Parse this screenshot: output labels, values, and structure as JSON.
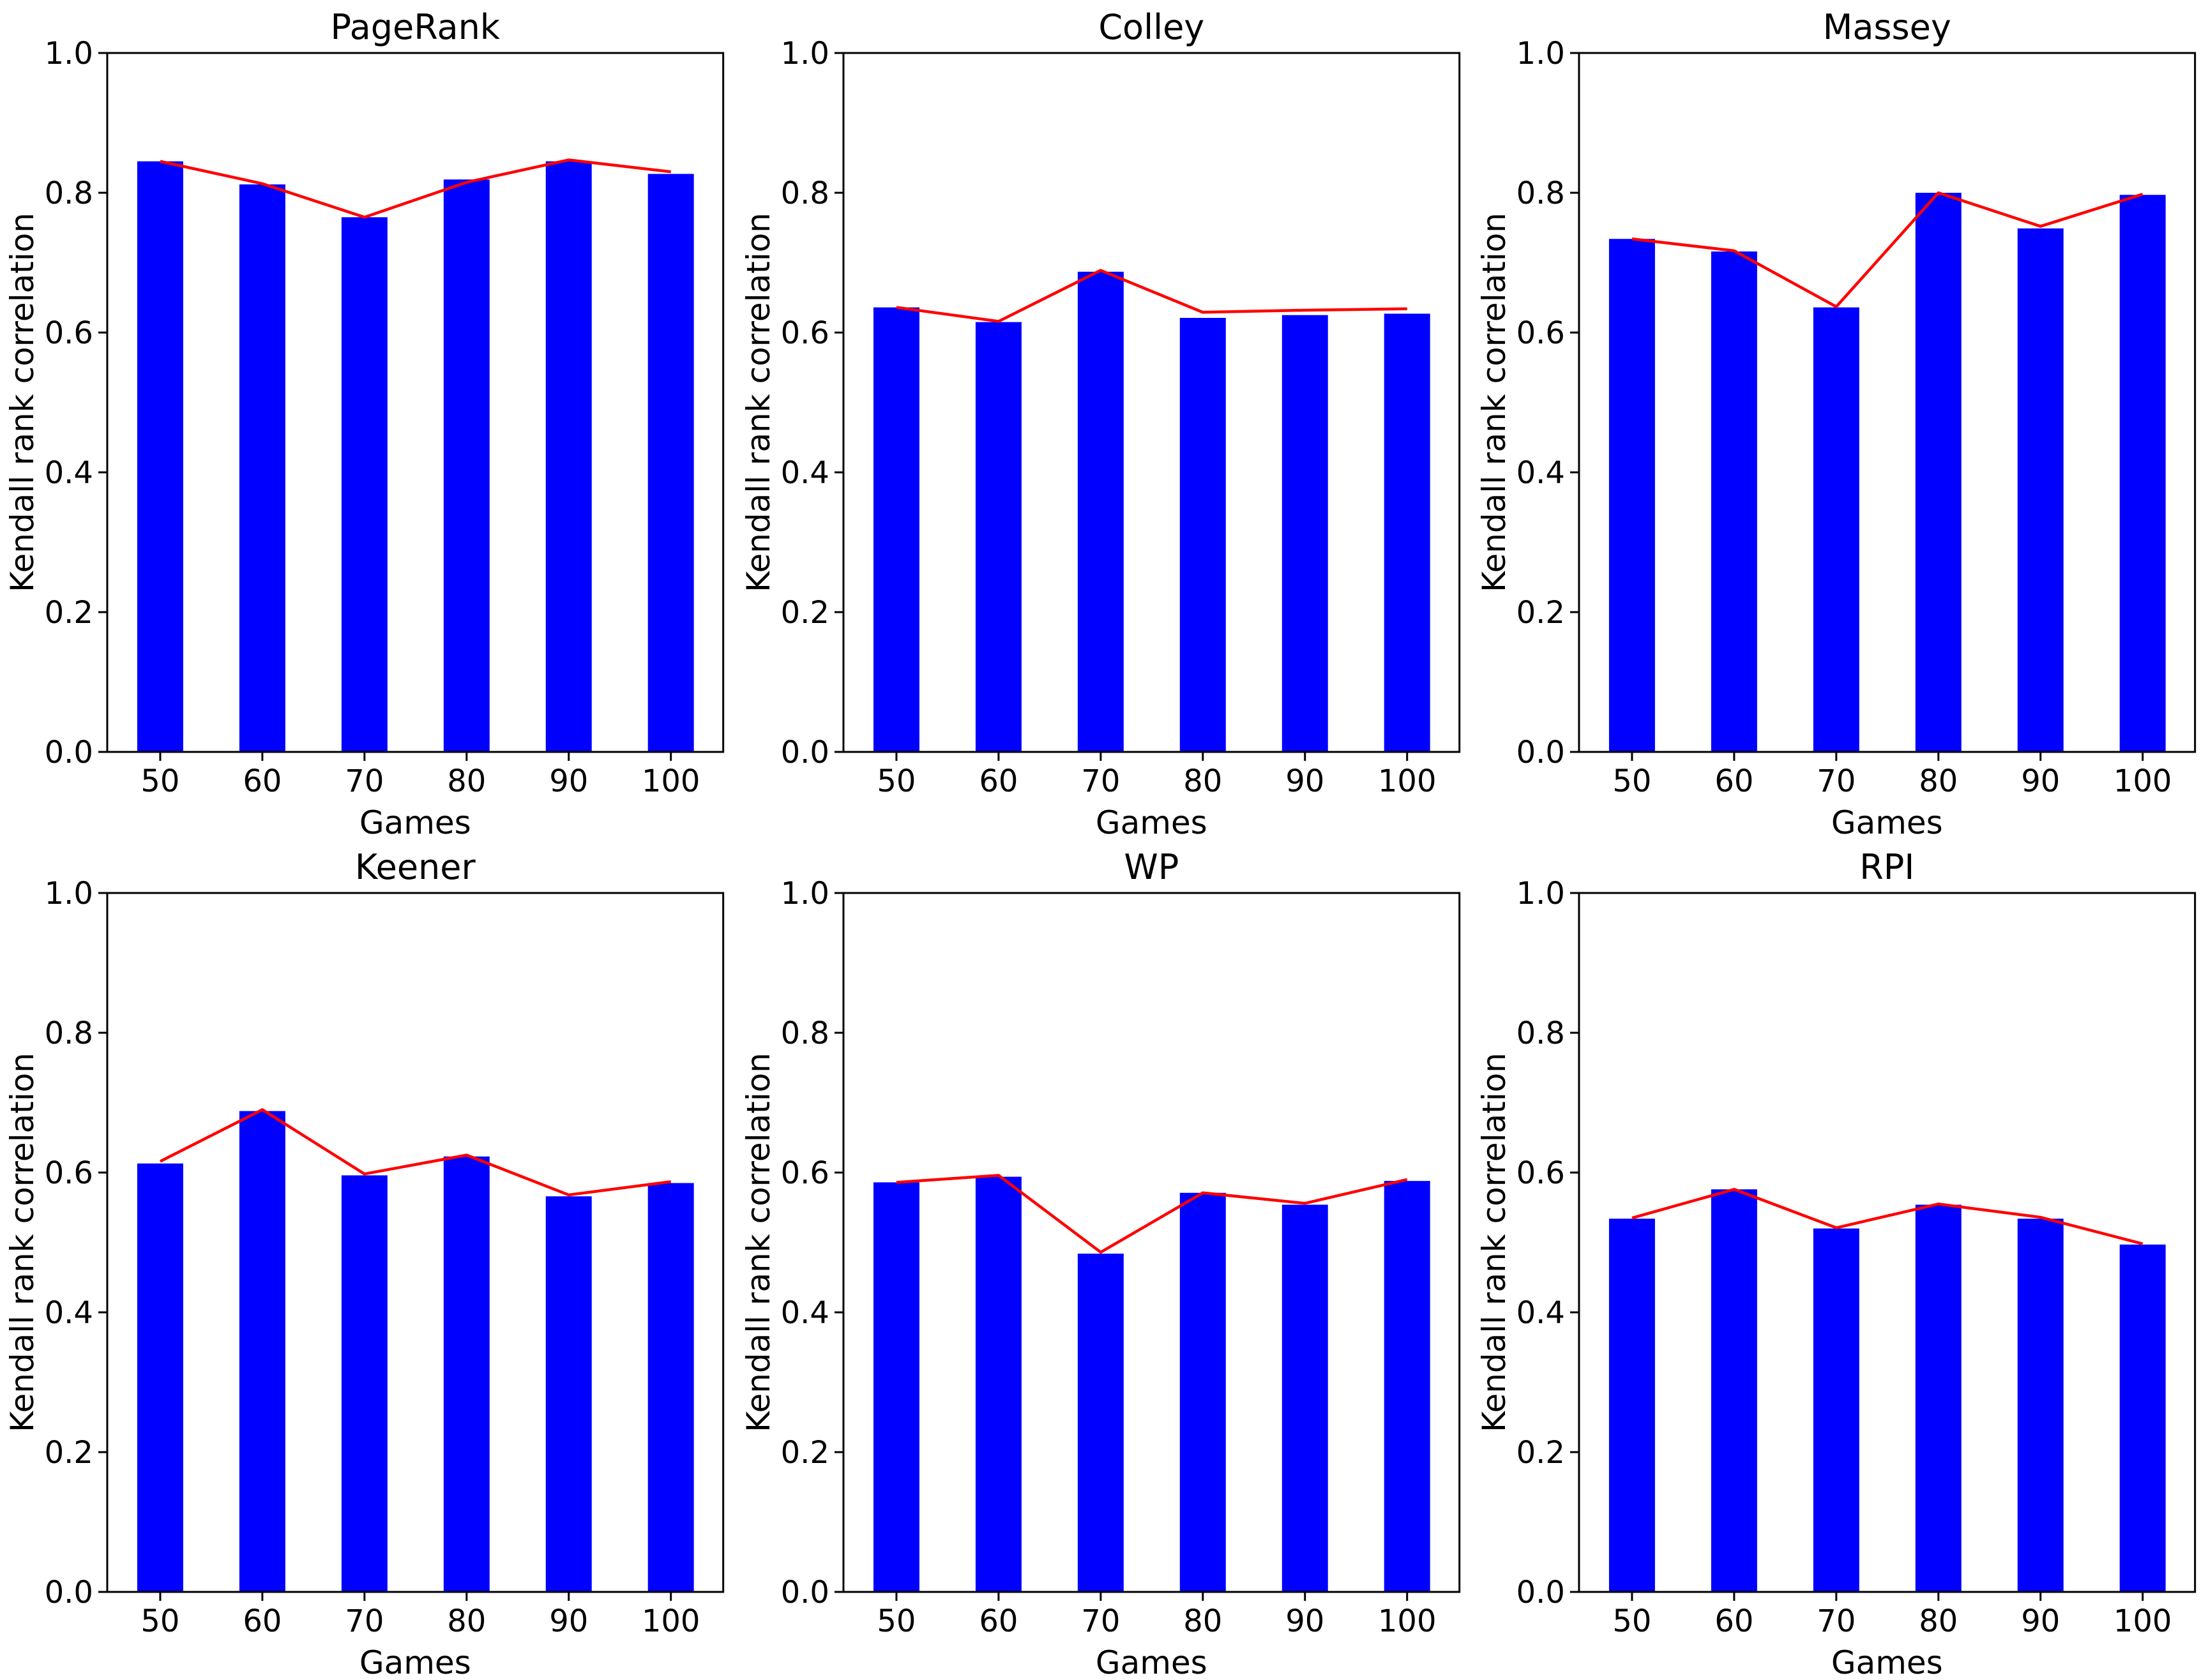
{
  "figure": {
    "background": "#ffffff"
  },
  "colors": {
    "bar": "#0000ff",
    "line": "#ff0000",
    "axis": "#000000",
    "text": "#000000"
  },
  "chart_data": [
    {
      "type": "bar",
      "title": "PageRank",
      "xlabel": "Games",
      "ylabel": "Kendall rank correlation",
      "categories": [
        "50",
        "60",
        "70",
        "80",
        "90",
        "100"
      ],
      "ylim": [
        0.0,
        1.0
      ],
      "ytick_values": [
        0.0,
        0.2,
        0.4,
        0.6,
        0.8,
        1.0
      ],
      "ytick_labels": [
        "0.0",
        "0.2",
        "0.4",
        "0.6",
        "0.8",
        "1.0"
      ],
      "grid": false,
      "legend": "none",
      "series": [
        {
          "name": "bars",
          "type": "bar",
          "values": [
            0.845,
            0.812,
            0.765,
            0.819,
            0.845,
            0.827
          ]
        },
        {
          "name": "line",
          "type": "line",
          "values": [
            0.845,
            0.813,
            0.765,
            0.815,
            0.847,
            0.83
          ]
        }
      ]
    },
    {
      "type": "bar",
      "title": "Colley",
      "xlabel": "Games",
      "ylabel": "Kendall rank correlation",
      "categories": [
        "50",
        "60",
        "70",
        "80",
        "90",
        "100"
      ],
      "ylim": [
        0.0,
        1.0
      ],
      "ytick_values": [
        0.0,
        0.2,
        0.4,
        0.6,
        0.8,
        1.0
      ],
      "ytick_labels": [
        "0.0",
        "0.2",
        "0.4",
        "0.6",
        "0.8",
        "1.0"
      ],
      "grid": false,
      "legend": "none",
      "series": [
        {
          "name": "bars",
          "type": "bar",
          "values": [
            0.636,
            0.615,
            0.687,
            0.621,
            0.625,
            0.627
          ]
        },
        {
          "name": "line",
          "type": "line",
          "values": [
            0.636,
            0.616,
            0.689,
            0.629,
            0.632,
            0.634
          ]
        }
      ]
    },
    {
      "type": "bar",
      "title": "Massey",
      "xlabel": "Games",
      "ylabel": "Kendall rank correlation",
      "categories": [
        "50",
        "60",
        "70",
        "80",
        "90",
        "100"
      ],
      "ylim": [
        0.0,
        1.0
      ],
      "ytick_values": [
        0.0,
        0.2,
        0.4,
        0.6,
        0.8,
        1.0
      ],
      "ytick_labels": [
        "0.0",
        "0.2",
        "0.4",
        "0.6",
        "0.8",
        "1.0"
      ],
      "grid": false,
      "legend": "none",
      "series": [
        {
          "name": "bars",
          "type": "bar",
          "values": [
            0.734,
            0.716,
            0.636,
            0.8,
            0.749,
            0.797
          ]
        },
        {
          "name": "line",
          "type": "line",
          "values": [
            0.734,
            0.717,
            0.637,
            0.8,
            0.752,
            0.798
          ]
        }
      ]
    },
    {
      "type": "bar",
      "title": "Keener",
      "xlabel": "Games",
      "ylabel": "Kendall rank correlation",
      "categories": [
        "50",
        "60",
        "70",
        "80",
        "90",
        "100"
      ],
      "ylim": [
        0.0,
        1.0
      ],
      "ytick_values": [
        0.0,
        0.2,
        0.4,
        0.6,
        0.8,
        1.0
      ],
      "ytick_labels": [
        "0.0",
        "0.2",
        "0.4",
        "0.6",
        "0.8",
        "1.0"
      ],
      "grid": false,
      "legend": "none",
      "series": [
        {
          "name": "bars",
          "type": "bar",
          "values": [
            0.613,
            0.688,
            0.596,
            0.623,
            0.566,
            0.585
          ]
        },
        {
          "name": "line",
          "type": "line",
          "values": [
            0.616,
            0.69,
            0.598,
            0.625,
            0.568,
            0.587
          ]
        }
      ]
    },
    {
      "type": "bar",
      "title": "WP",
      "xlabel": "Games",
      "ylabel": "Kendall rank correlation",
      "categories": [
        "50",
        "60",
        "70",
        "80",
        "90",
        "100"
      ],
      "ylim": [
        0.0,
        1.0
      ],
      "ytick_values": [
        0.0,
        0.2,
        0.4,
        0.6,
        0.8,
        1.0
      ],
      "ytick_labels": [
        "0.0",
        "0.2",
        "0.4",
        "0.6",
        "0.8",
        "1.0"
      ],
      "grid": false,
      "legend": "none",
      "series": [
        {
          "name": "bars",
          "type": "bar",
          "values": [
            0.586,
            0.594,
            0.484,
            0.571,
            0.554,
            0.588
          ]
        },
        {
          "name": "line",
          "type": "line",
          "values": [
            0.586,
            0.596,
            0.486,
            0.571,
            0.556,
            0.59
          ]
        }
      ]
    },
    {
      "type": "bar",
      "title": "RPI",
      "xlabel": "Games",
      "ylabel": "Kendall rank correlation",
      "categories": [
        "50",
        "60",
        "70",
        "80",
        "90",
        "100"
      ],
      "ylim": [
        0.0,
        1.0
      ],
      "ytick_values": [
        0.0,
        0.2,
        0.4,
        0.6,
        0.8,
        1.0
      ],
      "ytick_labels": [
        "0.0",
        "0.2",
        "0.4",
        "0.6",
        "0.8",
        "1.0"
      ],
      "grid": false,
      "legend": "none",
      "series": [
        {
          "name": "bars",
          "type": "bar",
          "values": [
            0.534,
            0.576,
            0.52,
            0.554,
            0.534,
            0.497
          ]
        },
        {
          "name": "line",
          "type": "line",
          "values": [
            0.535,
            0.576,
            0.521,
            0.555,
            0.536,
            0.498
          ]
        }
      ]
    }
  ]
}
